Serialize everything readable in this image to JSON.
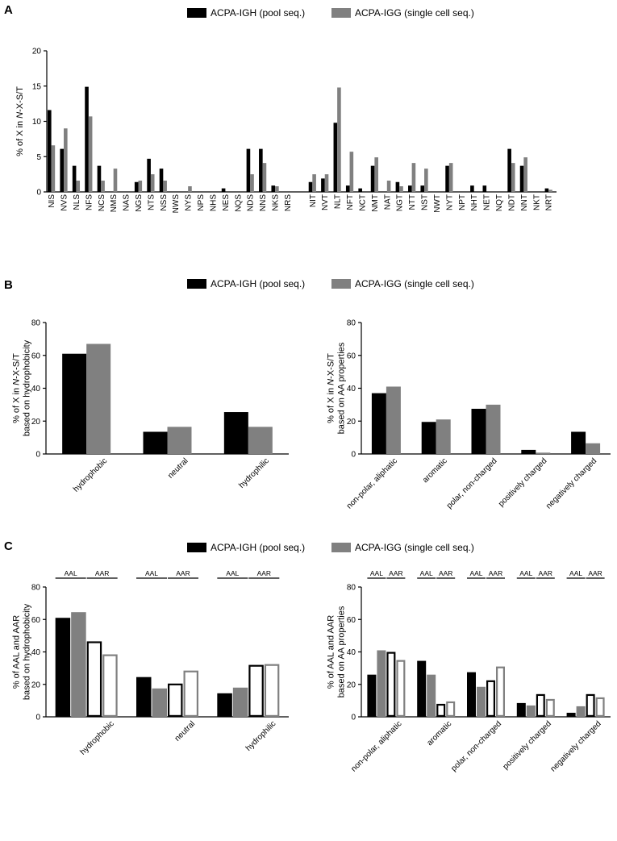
{
  "colors": {
    "black": "#000000",
    "grey": "#808080",
    "outline_grey": "#808080",
    "white": "#ffffff"
  },
  "legend": {
    "series1": "ACPA-IGH (pool seq.)",
    "series2": "ACPA-IGG (single cell seq.)"
  },
  "chart_data": [
    {
      "id": "A",
      "panel": "A",
      "type": "bar",
      "ylabel": "% of X in N-X-S/T",
      "ylim": [
        0,
        20
      ],
      "yticks": [
        0,
        5,
        10,
        15,
        20
      ],
      "categories": [
        "NIS",
        "NVS",
        "NLS",
        "NFS",
        "NCS",
        "NMS",
        "NAS",
        "NGS",
        "NTS",
        "NSS",
        "NWS",
        "NYS",
        "NPS",
        "NHS",
        "NES",
        "NQS",
        "NDS",
        "NNS",
        "NKS",
        "NRS",
        "",
        "NIT",
        "NVT",
        "NLT",
        "NFT",
        "NCT",
        "NMT",
        "NAT",
        "NGT",
        "NTT",
        "NST",
        "NWT",
        "NYT",
        "NPT",
        "NHT",
        "NET",
        "NQT",
        "NDT",
        "NNT",
        "NKT",
        "NRT"
      ],
      "series": [
        {
          "name": "ACPA-IGH (pool seq.)",
          "style": "black",
          "values": [
            11.6,
            6.1,
            3.7,
            14.9,
            3.7,
            0,
            0,
            1.4,
            4.7,
            3.3,
            0,
            0,
            0,
            0,
            0.5,
            0,
            6.1,
            6.1,
            0.9,
            0,
            null,
            1.4,
            1.9,
            9.8,
            0.9,
            0.5,
            3.7,
            0,
            1.4,
            0.9,
            0.9,
            0,
            3.7,
            0,
            0.9,
            0.9,
            0,
            6.1,
            3.7,
            0,
            0.5
          ]
        },
        {
          "name": "ACPA-IGG (single cell seq.)",
          "style": "grey",
          "values": [
            6.6,
            9.0,
            1.6,
            10.7,
            1.6,
            3.3,
            0,
            1.6,
            2.5,
            1.6,
            0,
            0.8,
            0,
            0,
            0,
            0,
            2.5,
            4.1,
            0.8,
            0,
            null,
            2.5,
            2.5,
            14.8,
            5.7,
            0,
            4.9,
            1.6,
            0.8,
            4.1,
            3.3,
            0,
            4.1,
            0,
            0,
            0,
            0,
            4.1,
            4.9,
            0,
            0.3
          ]
        }
      ]
    },
    {
      "id": "B1",
      "panel": "B",
      "type": "bar",
      "ylabel": [
        "% of X in N-X-S/T",
        "based on hydrophobicity"
      ],
      "ylim": [
        0,
        80
      ],
      "yticks": [
        0,
        20,
        40,
        60,
        80
      ],
      "categories": [
        "hydrophobic",
        "neutral",
        "hydrophilic"
      ],
      "series": [
        {
          "name": "ACPA-IGH (pool seq.)",
          "style": "black",
          "values": [
            61,
            13.5,
            25.5
          ]
        },
        {
          "name": "ACPA-IGG (single cell seq.)",
          "style": "grey",
          "values": [
            67,
            16.5,
            16.5
          ]
        }
      ]
    },
    {
      "id": "B2",
      "panel": "",
      "type": "bar",
      "ylabel": [
        "% of X in N-X-S/T",
        "based on AA properties"
      ],
      "ylim": [
        0,
        80
      ],
      "yticks": [
        0,
        20,
        40,
        60,
        80
      ],
      "categories": [
        "non-polar, aliphatic",
        "aromatic",
        "polar, non-charged",
        "positively charged",
        "negatively charged"
      ],
      "series": [
        {
          "name": "ACPA-IGH (pool seq.)",
          "style": "black",
          "values": [
            37,
            19.5,
            27.5,
            2.5,
            13.5
          ]
        },
        {
          "name": "ACPA-IGG (single cell seq.)",
          "style": "grey",
          "values": [
            41,
            21,
            30,
            0.8,
            6.5
          ]
        }
      ]
    },
    {
      "id": "C1",
      "panel": "C",
      "type": "bar",
      "ylabel": [
        "% of AAL and AAR",
        "based on hydrophobicity"
      ],
      "ylim": [
        0,
        80
      ],
      "yticks": [
        0,
        20,
        40,
        60,
        80
      ],
      "group_labels": [
        "AAL",
        "AAR"
      ],
      "categories": [
        "hydrophobic",
        "neutral",
        "hydrophilic"
      ],
      "series": [
        {
          "name": "AAL ACPA-IGH (pool seq.)",
          "style": "black",
          "values": [
            61,
            24.5,
            14.5
          ]
        },
        {
          "name": "AAL ACPA-IGG (single cell seq.)",
          "style": "grey",
          "values": [
            64.5,
            17.5,
            18
          ]
        },
        {
          "name": "AAR ACPA-IGH (pool seq.)",
          "style": "outline-black",
          "values": [
            46.5,
            20.5,
            32
          ]
        },
        {
          "name": "AAR ACPA-IGG (single cell seq.)",
          "style": "outline-grey",
          "values": [
            38.5,
            28.5,
            32.5
          ]
        }
      ]
    },
    {
      "id": "C2",
      "panel": "",
      "type": "bar",
      "ylabel": [
        "% of AAL and AAR",
        "based on AA properties"
      ],
      "ylim": [
        0,
        80
      ],
      "yticks": [
        0,
        20,
        40,
        60,
        80
      ],
      "group_labels": [
        "AAL",
        "AAR"
      ],
      "categories": [
        "non-polar, aliphatic",
        "aromatic",
        "polar, non-charged",
        "positively charged",
        "negatively charged"
      ],
      "series": [
        {
          "name": "AAL ACPA-IGH (pool seq.)",
          "style": "black",
          "values": [
            26,
            34.5,
            27.5,
            8.5,
            2.5
          ]
        },
        {
          "name": "AAL ACPA-IGG (single cell seq.)",
          "style": "grey",
          "values": [
            41,
            26,
            18.5,
            7,
            6.5
          ]
        },
        {
          "name": "AAR ACPA-IGH (pool seq.)",
          "style": "outline-black",
          "values": [
            40,
            8,
            22.5,
            14,
            14
          ]
        },
        {
          "name": "AAR ACPA-IGG (single cell seq.)",
          "style": "outline-grey",
          "values": [
            35,
            9.5,
            31,
            11,
            12
          ]
        }
      ]
    }
  ]
}
